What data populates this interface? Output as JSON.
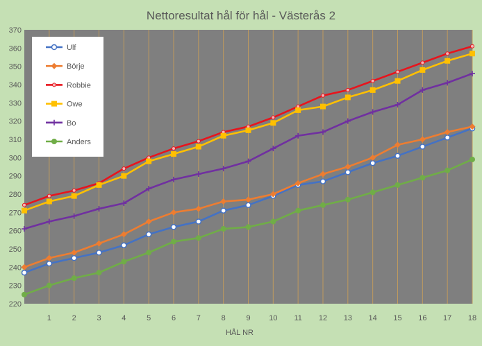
{
  "chart_data": {
    "type": "line",
    "title": "Nettoresultat hål för hål - Västerås  2",
    "xlabel": "HÅL NR",
    "ylabel": "",
    "x": [
      0,
      1,
      2,
      3,
      4,
      5,
      6,
      7,
      8,
      9,
      10,
      11,
      12,
      13,
      14,
      15,
      16,
      17,
      18
    ],
    "x_tick_labels": [
      "1",
      "2",
      "3",
      "4",
      "5",
      "6",
      "7",
      "8",
      "9",
      "10",
      "11",
      "12",
      "13",
      "14",
      "15",
      "16",
      "17",
      "18"
    ],
    "ylim": [
      220,
      370
    ],
    "y_ticks": [
      220,
      230,
      240,
      250,
      260,
      270,
      280,
      290,
      300,
      310,
      320,
      330,
      340,
      350,
      360,
      370
    ],
    "grid": "vertical",
    "legend_position": "top-left",
    "series": [
      {
        "name": "Ulf",
        "color": "#4472c4",
        "marker": "circle-open",
        "values": [
          237,
          242,
          245,
          248,
          252,
          258,
          262,
          265,
          271,
          274,
          279,
          285,
          287,
          292,
          297,
          301,
          306,
          311,
          316
        ]
      },
      {
        "name": "Börje",
        "color": "#ed7d31",
        "marker": "diamond",
        "values": [
          240,
          245,
          248,
          253,
          258,
          265,
          270,
          272,
          276,
          277,
          280,
          286,
          291,
          295,
          300,
          307,
          310,
          314,
          317
        ]
      },
      {
        "name": "Robbie",
        "color": "#e8141c",
        "marker": "circle-small",
        "values": [
          274,
          279,
          282,
          286,
          294,
          300,
          305,
          309,
          314,
          317,
          322,
          328,
          334,
          337,
          342,
          347,
          352,
          357,
          361
        ]
      },
      {
        "name": "Owe",
        "color": "#ffc000",
        "marker": "square",
        "values": [
          271,
          276,
          279,
          285,
          290,
          298,
          302,
          306,
          312,
          315,
          319,
          326,
          328,
          333,
          337,
          342,
          348,
          353,
          357
        ]
      },
      {
        "name": "Bo",
        "color": "#7030a0",
        "marker": "plus",
        "values": [
          261,
          265,
          268,
          272,
          275,
          283,
          288,
          291,
          294,
          298,
          305,
          312,
          314,
          320,
          325,
          329,
          337,
          341,
          346
        ]
      },
      {
        "name": "Anders",
        "color": "#70ad47",
        "marker": "circle",
        "values": [
          225,
          230,
          234,
          237,
          243,
          248,
          254,
          256,
          261,
          262,
          265,
          271,
          274,
          277,
          281,
          285,
          289,
          293,
          299
        ]
      }
    ]
  },
  "colors": {
    "background": "#c5e0b4",
    "plot_area": "#7f7f7f",
    "grid": "#bf9a5e",
    "legend_bg": "#ffffff",
    "text": "#595959"
  }
}
